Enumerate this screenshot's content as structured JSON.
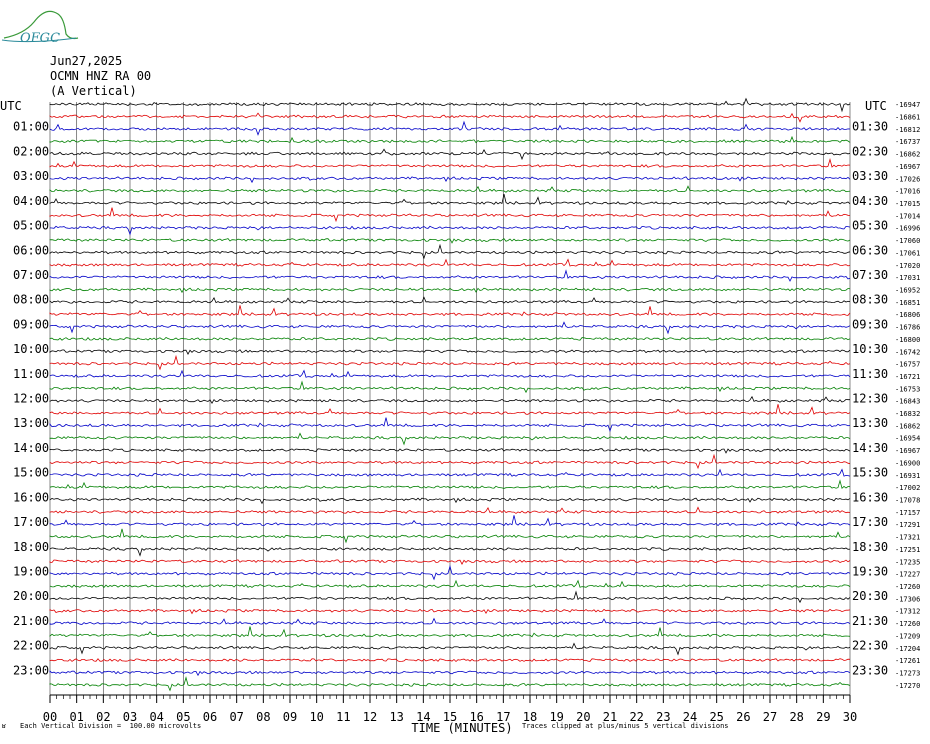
{
  "logo": {
    "text": "OFGC",
    "color": "#2a8a9a",
    "mountain_color": "#3a9a3a"
  },
  "header": {
    "date": "Jun27,2025",
    "station": "OCMN HNZ RA 00",
    "component": "(A Vertical)"
  },
  "utc_left_label": "UTC",
  "utc_right_label": "UTC",
  "x_axis": {
    "title": "TIME (MINUTES)",
    "ticks": [
      "00",
      "01",
      "02",
      "03",
      "04",
      "05",
      "06",
      "07",
      "08",
      "09",
      "10",
      "11",
      "12",
      "13",
      "14",
      "15",
      "16",
      "17",
      "18",
      "19",
      "20",
      "21",
      "22",
      "23",
      "24",
      "25",
      "26",
      "27",
      "28",
      "29",
      "30"
    ]
  },
  "footer": {
    "mark": "ʁ",
    "left": "Each Vertical Division =  100.00 microvolts",
    "right": "Traces clipped at plus/minus 5 vertical divisions"
  },
  "trace_colors": [
    "#000000",
    "#e00000",
    "#0000c8",
    "#008000"
  ],
  "chart_data": {
    "type": "helicorder",
    "x_unit": "minutes",
    "xlim": [
      0,
      30
    ],
    "grid": true,
    "left_hour_labels": [
      "01:00",
      "02:00",
      "03:00",
      "04:00",
      "05:00",
      "06:00",
      "07:00",
      "08:00",
      "09:00",
      "10:00",
      "11:00",
      "12:00",
      "13:00",
      "14:00",
      "15:00",
      "16:00",
      "17:00",
      "18:00",
      "19:00",
      "20:00",
      "21:00",
      "22:00",
      "23:00"
    ],
    "right_half_labels": [
      "01:30",
      "02:30",
      "03:30",
      "04:30",
      "05:30",
      "06:30",
      "07:30",
      "08:30",
      "09:30",
      "10:30",
      "11:30",
      "12:30",
      "13:30",
      "14:30",
      "15:30",
      "16:30",
      "17:30",
      "18:30",
      "19:30",
      "20:30",
      "21:30",
      "22:30",
      "23:30"
    ],
    "right_offsets": [
      "-16947",
      "-16861",
      "-16812",
      "-16737",
      "-16862",
      "-16967",
      "-17026",
      "-17016",
      "-17015",
      "-17014",
      "-16996",
      "-17060",
      "-17061",
      "-17020",
      "-17031",
      "-16952",
      "-16851",
      "-16806",
      "-16786",
      "-16800",
      "-16742",
      "-16757",
      "-16721",
      "-16753",
      "-16843",
      "-16832",
      "-16862",
      "-16954",
      "-16967",
      "-16900",
      "-16931",
      "-17002",
      "-17078",
      "-17157",
      "-17291",
      "-17321",
      "-17251",
      "-17235",
      "-17227",
      "-17260",
      "-17306",
      "-17312",
      "-17260",
      "-17209",
      "-17204",
      "-17261",
      "-17273",
      "-17270"
    ]
  }
}
